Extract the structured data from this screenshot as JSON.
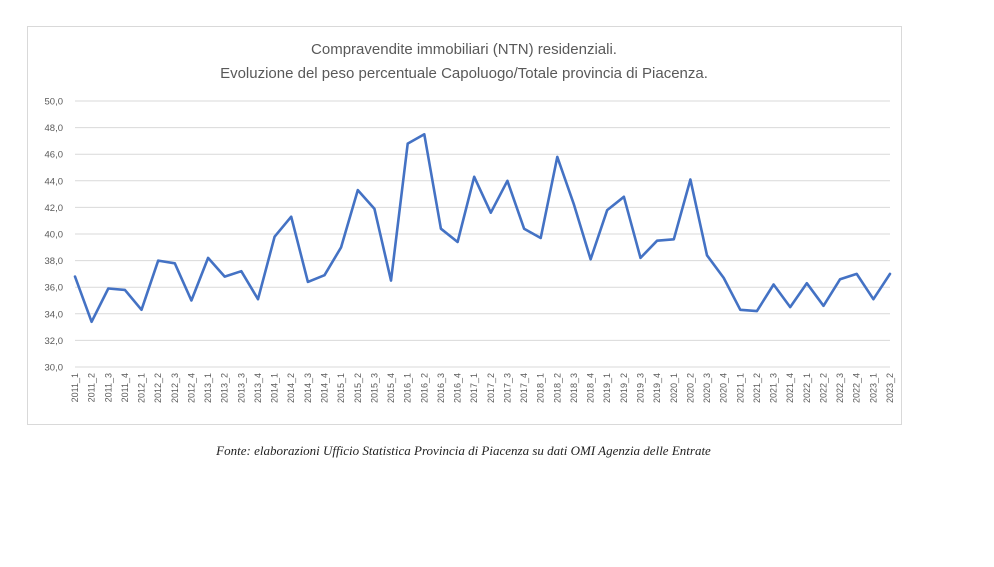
{
  "chart_data": {
    "type": "line",
    "title_lines": [
      "Compravendite immobiliari (NTN) residenziali.",
      "Evoluzione del peso percentuale Capoluogo/Totale provincia di Piacenza."
    ],
    "xlabel": "",
    "ylabel": "",
    "ylim": [
      30,
      50
    ],
    "y_ticks": [
      "30,0",
      "32,0",
      "34,0",
      "36,0",
      "38,0",
      "40,0",
      "42,0",
      "44,0",
      "46,0",
      "48,0",
      "50,0"
    ],
    "grid": true,
    "legend": "none",
    "line_color": "#4472c4",
    "categories": [
      "2011_1",
      "2011_2",
      "2011_3",
      "2011_4",
      "2012_1",
      "2012_2",
      "2012_3",
      "2012_4",
      "2013_1",
      "2013_2",
      "2013_3",
      "2013_4",
      "2014_1",
      "2014_2",
      "2014_3",
      "2014_4",
      "2015_1",
      "2015_2",
      "2015_3",
      "2015_4",
      "2016_1",
      "2016_2",
      "2016_3",
      "2016_4",
      "2017_1",
      "2017_2",
      "2017_3",
      "2017_4",
      "2018_1",
      "2018_2",
      "2018_3",
      "2018_4",
      "2019_1",
      "2019_2",
      "2019_3",
      "2019_4",
      "2020_1",
      "2020_2",
      "2020_3",
      "2020_4",
      "2021_1",
      "2021_2",
      "2021_3",
      "2021_4",
      "2022_1",
      "2022_2",
      "2022_3",
      "2022_4",
      "2023_1",
      "2023_2"
    ],
    "values": [
      36.8,
      33.4,
      35.9,
      35.8,
      34.3,
      38.0,
      37.8,
      35.0,
      38.2,
      36.8,
      37.2,
      35.1,
      39.8,
      41.3,
      36.4,
      36.9,
      39.0,
      43.3,
      41.9,
      36.5,
      46.8,
      47.5,
      40.4,
      39.4,
      44.3,
      41.6,
      44.0,
      40.4,
      39.7,
      45.8,
      42.2,
      38.1,
      41.8,
      42.8,
      38.2,
      39.5,
      39.6,
      44.1,
      38.4,
      36.7,
      34.3,
      34.2,
      36.2,
      34.5,
      36.3,
      34.6,
      36.6,
      37.0,
      35.1,
      37.0
    ]
  },
  "source_note": "Fonte: elaborazioni Ufficio Statistica Provincia di Piacenza su dati OMI Agenzia delle Entrate"
}
